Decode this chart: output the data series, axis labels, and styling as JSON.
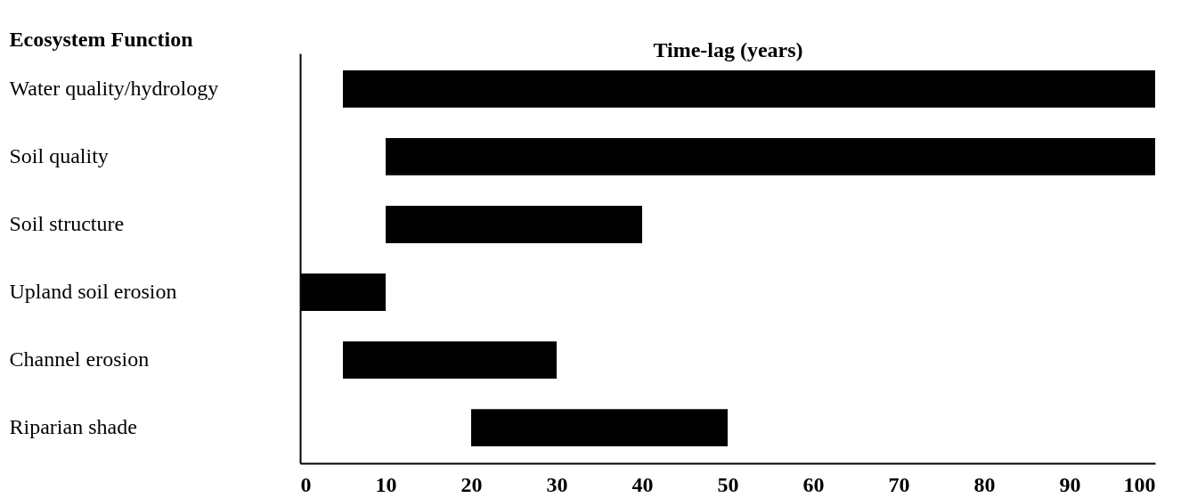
{
  "chart_data": {
    "type": "bar",
    "orientation": "horizontal",
    "xlabel": "Time-lag (years)",
    "ylabel": "Ecosystem Function",
    "categories": [
      "Water quality/hydrology",
      "Soil quality",
      "Soil structure",
      "Upland soil erosion",
      "Channel erosion",
      "Riparian shade"
    ],
    "base": [
      5,
      10,
      10,
      0,
      5,
      20
    ],
    "values": [
      95,
      90,
      30,
      10,
      25,
      30
    ],
    "color": "#000000",
    "xlim": [
      0,
      100
    ],
    "xticks": [
      0,
      10,
      20,
      30,
      40,
      50,
      60,
      70,
      80,
      90,
      100
    ]
  }
}
